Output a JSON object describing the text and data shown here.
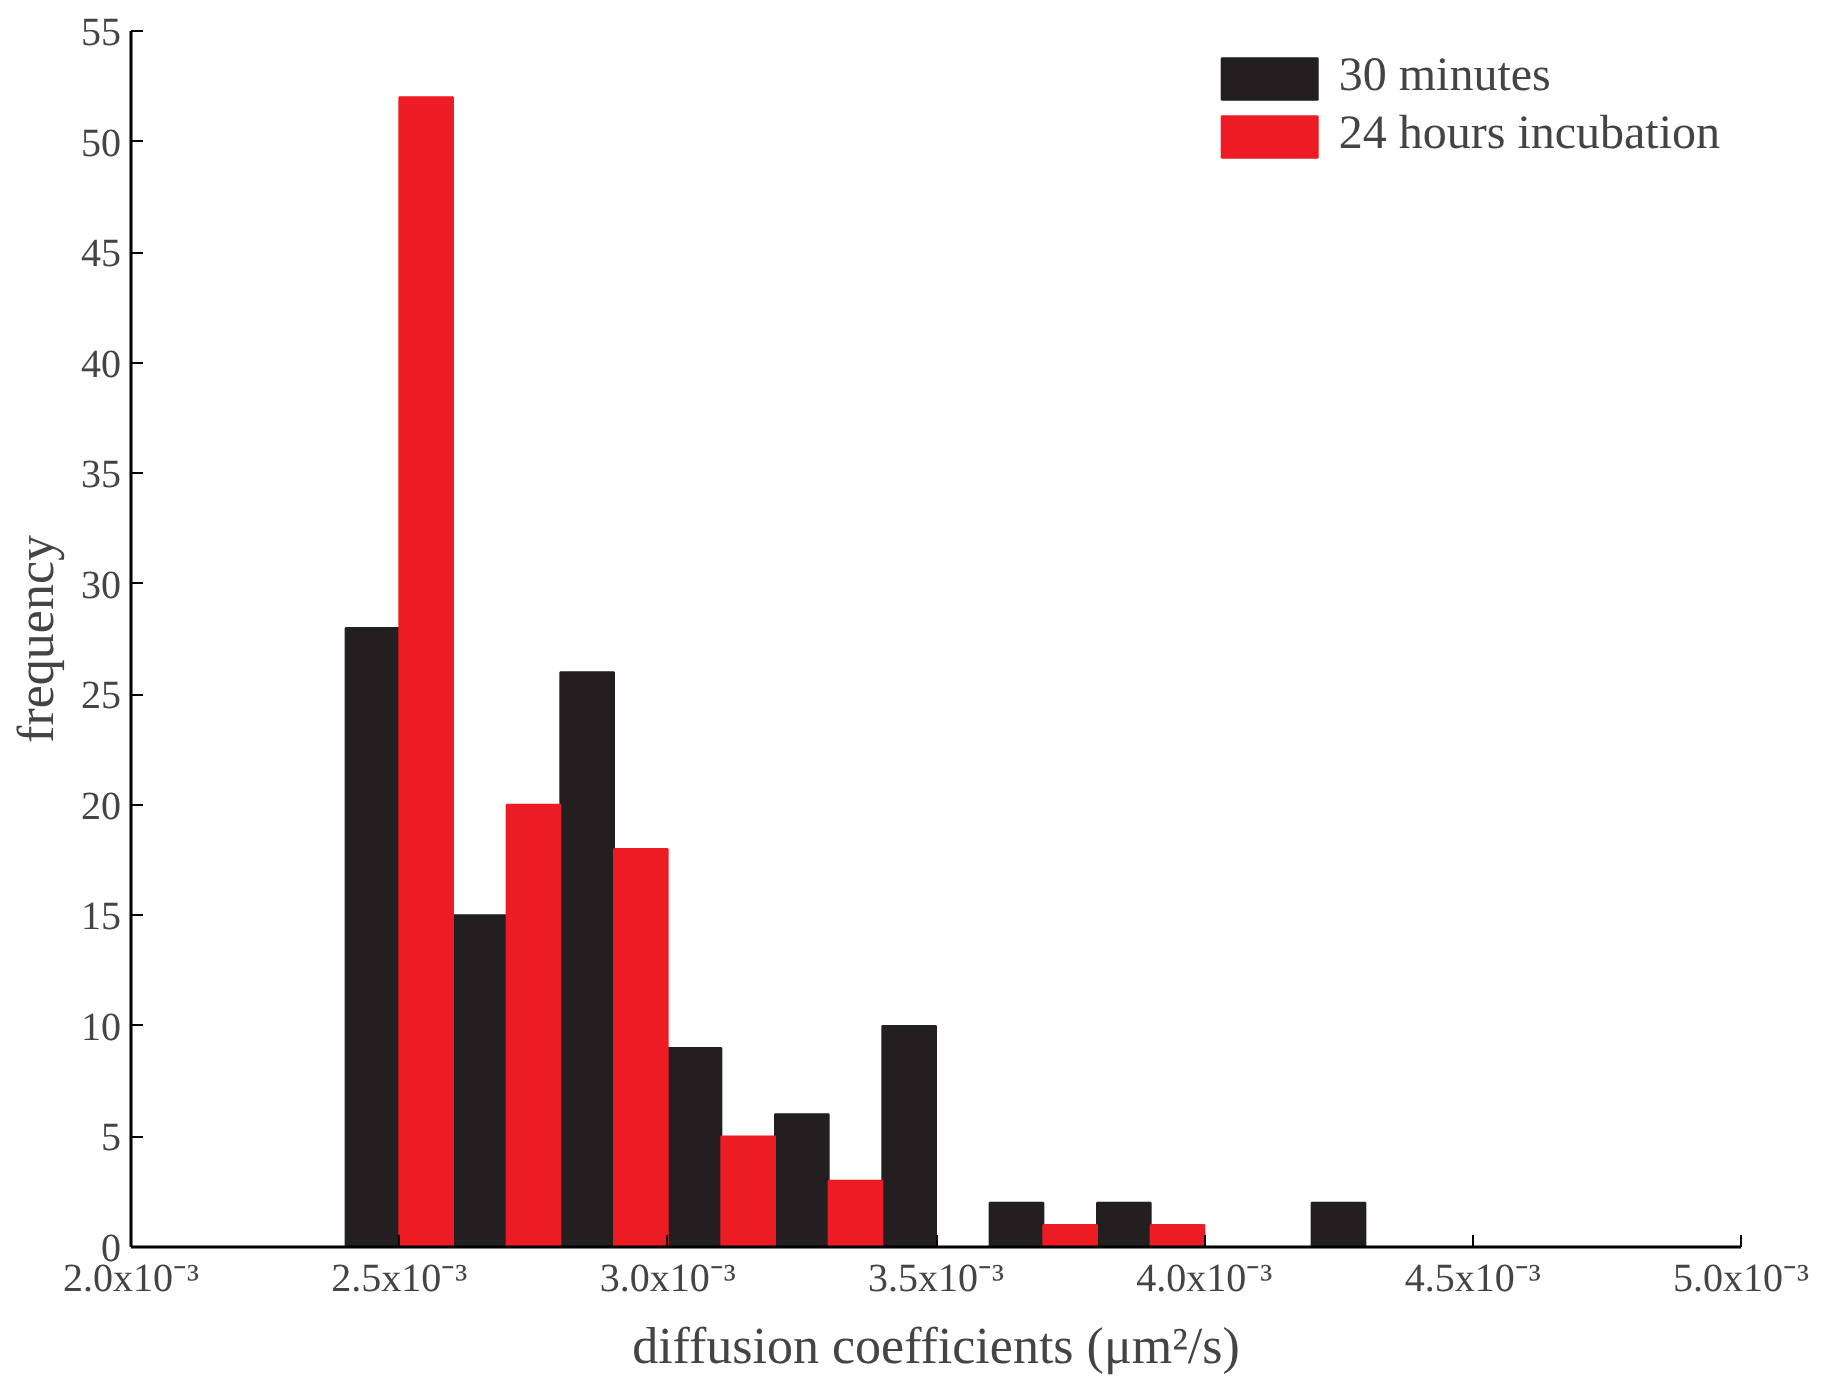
{
  "chart_data": {
    "type": "histogram",
    "xlabel": "diffusion coefficients (μm²/s)",
    "ylabel": "frequency",
    "bins": [
      0.0024,
      0.0026,
      0.0028,
      0.003,
      0.0032,
      0.0034,
      0.0036,
      0.0038,
      0.004,
      0.0042,
      0.0044
    ],
    "series": [
      {
        "name": "30 minutes",
        "color": "#231f20",
        "values": [
          28,
          15,
          26,
          9,
          6,
          10,
          2,
          2,
          0,
          2
        ]
      },
      {
        "name": "24 hours incubation",
        "color": "#ed1c24",
        "values": [
          52,
          20,
          18,
          5,
          3,
          0,
          1,
          1,
          0,
          0
        ]
      }
    ],
    "xlim": [
      0.002,
      0.005
    ],
    "xticks": [
      {
        "value": 0.002,
        "label": "2.0x10⁻³"
      },
      {
        "value": 0.0025,
        "label": "2.5x10⁻³"
      },
      {
        "value": 0.003,
        "label": "3.0x10⁻³"
      },
      {
        "value": 0.0035,
        "label": "3.5x10⁻³"
      },
      {
        "value": 0.004,
        "label": "4.0x10⁻³"
      },
      {
        "value": 0.0045,
        "label": "4.5x10⁻³"
      },
      {
        "value": 0.005,
        "label": "5.0x10⁻³"
      }
    ],
    "ylim": [
      0,
      55
    ],
    "yticks": [
      0,
      5,
      10,
      15,
      20,
      25,
      30,
      35,
      40,
      45,
      50,
      55
    ],
    "grid": false,
    "legend": "top right"
  }
}
